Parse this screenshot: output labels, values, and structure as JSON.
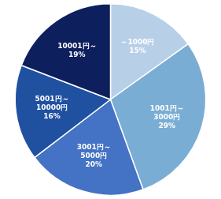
{
  "chart_data": {
    "type": "pie",
    "categories": [
      "～1000円",
      "1001円～\n3000円",
      "3001円～\n5000円",
      "5001円～\n10000円",
      "10001円～"
    ],
    "values": [
      15,
      29,
      20,
      16,
      19
    ],
    "value_labels": [
      "15%",
      "29%",
      "20%",
      "16%",
      "19%"
    ],
    "colors": [
      "#b8cfe8",
      "#7aadd4",
      "#4472c4",
      "#2050a0",
      "#0d1f5c"
    ],
    "data_labels": true,
    "legend": false
  }
}
